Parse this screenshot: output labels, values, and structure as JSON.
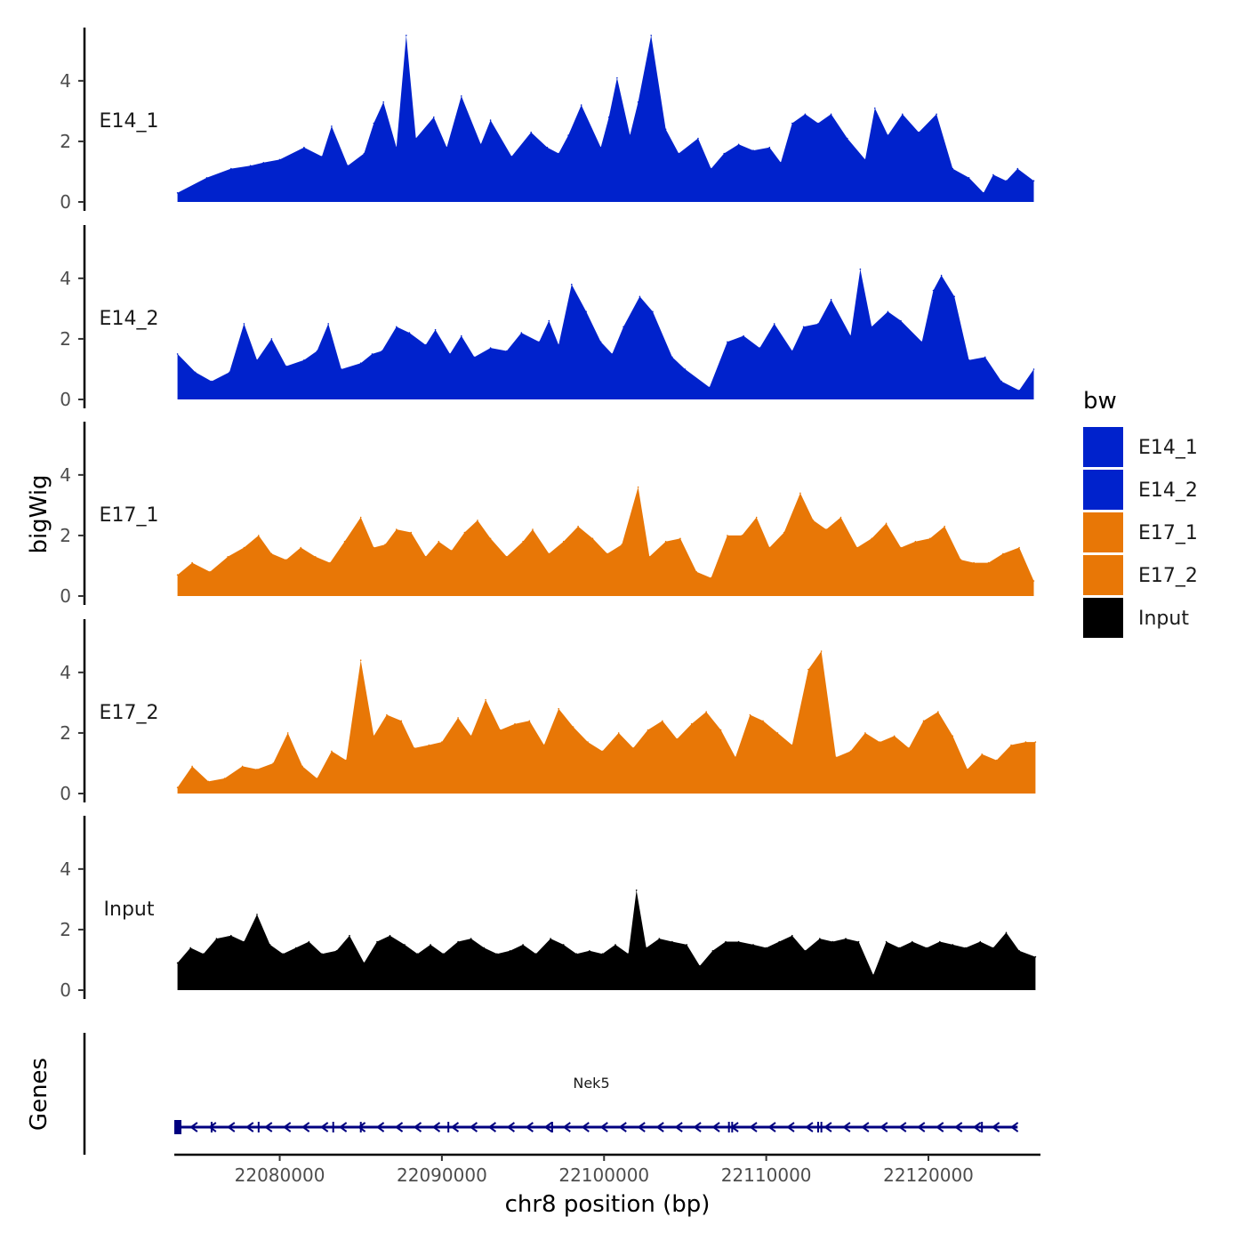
{
  "chart_data": {
    "type": "area",
    "title": "",
    "xlabel": "chr8 position (bp)",
    "ylabel": "bigWig",
    "genes_label": "Genes",
    "xlim": [
      22073500,
      22126800
    ],
    "x_ticks": [
      22080000,
      22090000,
      22100000,
      22110000,
      22120000
    ],
    "x_tick_labels": [
      "22080000",
      "22090000",
      "22100000",
      "22110000",
      "22120000"
    ],
    "ylim": [
      0,
      5.7
    ],
    "y_ticks": [
      0,
      2,
      4
    ],
    "y_tick_labels": [
      "0",
      "2",
      "4"
    ],
    "legend": {
      "title": "bw",
      "position": "right",
      "items": [
        {
          "label": "E14_1",
          "color": "#0022CC"
        },
        {
          "label": "E14_2",
          "color": "#0022CC"
        },
        {
          "label": "E17_1",
          "color": "#E87706"
        },
        {
          "label": "E17_2",
          "color": "#E87706"
        },
        {
          "label": "Input",
          "color": "#000000"
        }
      ]
    },
    "series": [
      {
        "name": "E14_1",
        "color": "#0022CC",
        "x": [
          22073700,
          22075500,
          22077000,
          22078200,
          22079000,
          22080000,
          22081500,
          22082600,
          22083200,
          22084200,
          22085200,
          22085800,
          22086400,
          22087200,
          22087800,
          22088400,
          22089500,
          22090300,
          22091200,
          22092400,
          22093000,
          22094300,
          22095500,
          22096500,
          22097200,
          22097800,
          22098600,
          22099800,
          22100300,
          22100800,
          22101600,
          22102100,
          22102900,
          22103800,
          22104600,
          22105800,
          22106600,
          22107400,
          22108300,
          22109200,
          22110200,
          22110900,
          22111600,
          22112400,
          22113200,
          22114000,
          22115000,
          22116100,
          22116700,
          22117500,
          22118400,
          22119400,
          22120500,
          22121500,
          22122500,
          22123400,
          22124000,
          22124800,
          22125500,
          22126500
        ],
        "y": [
          0.3,
          0.8,
          1.1,
          1.2,
          1.3,
          1.4,
          1.8,
          1.5,
          2.5,
          1.2,
          1.6,
          2.6,
          3.3,
          1.8,
          5.5,
          2.1,
          2.8,
          1.8,
          3.5,
          1.9,
          2.7,
          1.5,
          2.3,
          1.8,
          1.6,
          2.2,
          3.2,
          1.8,
          2.8,
          4.1,
          2.2,
          3.3,
          5.5,
          2.4,
          1.6,
          2.1,
          1.1,
          1.6,
          1.9,
          1.7,
          1.8,
          1.3,
          2.6,
          2.9,
          2.6,
          2.9,
          2.1,
          1.4,
          3.1,
          2.2,
          2.9,
          2.3,
          2.9,
          1.1,
          0.8,
          0.3,
          0.9,
          0.7,
          1.1,
          0.7
        ]
      },
      {
        "name": "E14_2",
        "color": "#0022CC",
        "x": [
          22073700,
          22074800,
          22075800,
          22076900,
          22077800,
          22078600,
          22079500,
          22080400,
          22081500,
          22082300,
          22083000,
          22083800,
          22085000,
          22085700,
          22086300,
          22087200,
          22088000,
          22089000,
          22089600,
          22090500,
          22091200,
          22092000,
          22093000,
          22094000,
          22094900,
          22096000,
          22096600,
          22097200,
          22098000,
          22098900,
          22099800,
          22100500,
          22101200,
          22102200,
          22103000,
          22104200,
          22105000,
          22106500,
          22107600,
          22108600,
          22109600,
          22110500,
          22111600,
          22112300,
          22113200,
          22114000,
          22115200,
          22115800,
          22116500,
          22117500,
          22118300,
          22119600,
          22120300,
          22120800,
          22121600,
          22122500,
          22123500,
          22124500,
          22125600,
          22126500
        ],
        "y": [
          1.5,
          0.9,
          0.6,
          0.9,
          2.5,
          1.3,
          2.0,
          1.1,
          1.3,
          1.6,
          2.5,
          1.0,
          1.2,
          1.5,
          1.6,
          2.4,
          2.2,
          1.8,
          2.3,
          1.5,
          2.1,
          1.4,
          1.7,
          1.6,
          2.2,
          1.9,
          2.6,
          1.8,
          3.8,
          2.9,
          1.9,
          1.5,
          2.4,
          3.4,
          2.9,
          1.4,
          1.0,
          0.4,
          1.9,
          2.1,
          1.7,
          2.5,
          1.6,
          2.4,
          2.5,
          3.3,
          2.1,
          4.3,
          2.4,
          2.9,
          2.6,
          1.9,
          3.6,
          4.1,
          3.4,
          1.3,
          1.4,
          0.6,
          0.3,
          1.0
        ]
      },
      {
        "name": "E17_1",
        "color": "#E87706",
        "x": [
          22073700,
          22074600,
          22075700,
          22076800,
          22077800,
          22078700,
          22079500,
          22080400,
          22081300,
          22082200,
          22083100,
          22084000,
          22085000,
          22085800,
          22086500,
          22087200,
          22088100,
          22089000,
          22089800,
          22090600,
          22091400,
          22092200,
          22093000,
          22094000,
          22095000,
          22095600,
          22096600,
          22097500,
          22098400,
          22099300,
          22100200,
          22101100,
          22102100,
          22102800,
          22103800,
          22104700,
          22105700,
          22106600,
          22107600,
          22108500,
          22109400,
          22110200,
          22111100,
          22112100,
          22112900,
          22113700,
          22114600,
          22115600,
          22116500,
          22117400,
          22118300,
          22119200,
          22120100,
          22121000,
          22122000,
          22122800,
          22123700,
          22124600,
          22125600,
          22126500
        ],
        "y": [
          0.7,
          1.1,
          0.8,
          1.3,
          1.6,
          2.0,
          1.4,
          1.2,
          1.6,
          1.3,
          1.1,
          1.8,
          2.6,
          1.6,
          1.7,
          2.2,
          2.1,
          1.3,
          1.8,
          1.5,
          2.1,
          2.5,
          1.9,
          1.3,
          1.8,
          2.2,
          1.4,
          1.8,
          2.3,
          1.9,
          1.4,
          1.7,
          3.6,
          1.3,
          1.8,
          1.9,
          0.8,
          0.6,
          2.0,
          2.0,
          2.6,
          1.6,
          2.1,
          3.4,
          2.5,
          2.2,
          2.6,
          1.6,
          1.9,
          2.4,
          1.6,
          1.8,
          1.9,
          2.3,
          1.2,
          1.1,
          1.1,
          1.4,
          1.6,
          0.5
        ]
      },
      {
        "name": "E17_2",
        "color": "#E87706",
        "x": [
          22073700,
          22074600,
          22075600,
          22076600,
          22077700,
          22078600,
          22079600,
          22080500,
          22081400,
          22082300,
          22083200,
          22084100,
          22085000,
          22085800,
          22086600,
          22087500,
          22088300,
          22089200,
          22090000,
          22091000,
          22091800,
          22092700,
          22093600,
          22094500,
          22095400,
          22096300,
          22097200,
          22098100,
          22099000,
          22099900,
          22100900,
          22101800,
          22102700,
          22103600,
          22104500,
          22105400,
          22106300,
          22107200,
          22108100,
          22109000,
          22109800,
          22110700,
          22111600,
          22112600,
          22113400,
          22114300,
          22115200,
          22116100,
          22117000,
          22117900,
          22118800,
          22119700,
          22120600,
          22121500,
          22122400,
          22123300,
          22124200,
          22125100,
          22126000,
          22126600
        ],
        "y": [
          0.2,
          0.9,
          0.4,
          0.5,
          0.9,
          0.8,
          1.0,
          2.0,
          0.9,
          0.5,
          1.4,
          1.1,
          4.4,
          1.9,
          2.6,
          2.4,
          1.5,
          1.6,
          1.7,
          2.5,
          1.9,
          3.1,
          2.1,
          2.3,
          2.4,
          1.6,
          2.8,
          2.2,
          1.7,
          1.4,
          2.0,
          1.5,
          2.1,
          2.4,
          1.8,
          2.3,
          2.7,
          2.1,
          1.2,
          2.6,
          2.4,
          2.0,
          1.6,
          4.1,
          4.7,
          1.2,
          1.4,
          2.0,
          1.7,
          1.9,
          1.5,
          2.4,
          2.7,
          1.9,
          0.8,
          1.3,
          1.1,
          1.6,
          1.7,
          1.7
        ]
      },
      {
        "name": "Input",
        "color": "#000000",
        "x": [
          22073700,
          22074500,
          22075300,
          22076100,
          22077000,
          22077800,
          22078600,
          22079400,
          22080200,
          22081000,
          22081800,
          22082600,
          22083500,
          22084300,
          22085200,
          22086000,
          22086800,
          22087700,
          22088500,
          22089300,
          22090100,
          22091000,
          22091800,
          22092600,
          22093400,
          22094200,
          22095000,
          22095800,
          22096700,
          22097500,
          22098300,
          22099100,
          22099900,
          22100700,
          22101500,
          22102000,
          22102600,
          22103400,
          22104200,
          22105100,
          22105900,
          22106700,
          22107500,
          22108300,
          22109200,
          22110000,
          22110800,
          22111600,
          22112400,
          22113300,
          22114100,
          22114900,
          22115700,
          22116600,
          22117400,
          22118200,
          22119000,
          22119900,
          22120700,
          22121500,
          22122300,
          22123200,
          22124000,
          22124800,
          22125600,
          22126600
        ],
        "y": [
          0.9,
          1.4,
          1.2,
          1.7,
          1.8,
          1.6,
          2.5,
          1.5,
          1.2,
          1.4,
          1.6,
          1.2,
          1.3,
          1.8,
          0.9,
          1.6,
          1.8,
          1.5,
          1.2,
          1.5,
          1.2,
          1.6,
          1.7,
          1.4,
          1.2,
          1.3,
          1.5,
          1.2,
          1.7,
          1.5,
          1.2,
          1.3,
          1.2,
          1.5,
          1.2,
          3.3,
          1.4,
          1.7,
          1.6,
          1.5,
          0.8,
          1.3,
          1.6,
          1.6,
          1.5,
          1.4,
          1.6,
          1.8,
          1.3,
          1.7,
          1.6,
          1.7,
          1.6,
          0.5,
          1.6,
          1.4,
          1.6,
          1.4,
          1.6,
          1.5,
          1.4,
          1.6,
          1.4,
          1.9,
          1.3,
          1.1
        ]
      }
    ],
    "gene_track": {
      "gene": "Nek5",
      "color": "#000080",
      "start": 22073500,
      "end": 22125500,
      "strand": "-"
    }
  }
}
